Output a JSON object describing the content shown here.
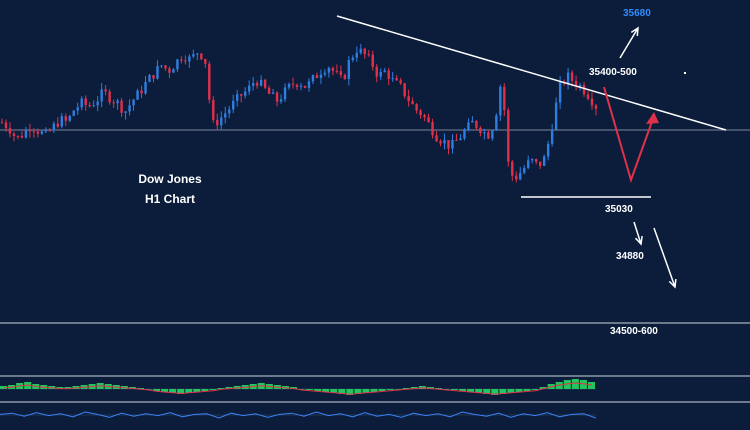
{
  "colors": {
    "background": "#0b1d3a",
    "bull_candle": "#2f7de1",
    "bear_candle": "#e0314b",
    "trendline": "#ffffff",
    "projection_red": "#e0314b",
    "projection_white": "#ffffff",
    "target_blue": "#2f8cff",
    "macd_bar": "#22c55e",
    "macd_signal": "#e0314b",
    "oscillator": "#3b82f6"
  },
  "chart_data": {
    "type": "candlestick",
    "title": "Dow Jones",
    "subtitle": "H1 Chart",
    "levels": {
      "target_up": "35680",
      "resistance": "35400-500",
      "support": "35030",
      "target_down_1": "34880",
      "target_down_2": "34500-600"
    },
    "annotations": [
      "descending trendline",
      "red V projection",
      "white arrow up",
      "white arrows down"
    ],
    "price_path": [
      35250,
      35230,
      35190,
      35210,
      35240,
      35220,
      35200,
      35230,
      35260,
      35250,
      35300,
      35320,
      35310,
      35330,
      35360,
      35340,
      35320,
      35290,
      35330,
      35360,
      35400,
      35430,
      35460,
      35440,
      35470,
      35500,
      35480,
      35510,
      35490,
      35240,
      35260,
      35290,
      35320,
      35350,
      35370,
      35410,
      35380,
      35350,
      35330,
      35360,
      35390,
      35400,
      35380,
      35410,
      35440,
      35460,
      35430,
      35400,
      35480,
      35520,
      35500,
      35470,
      35420,
      35440,
      35400,
      35380,
      35340,
      35300,
      35280,
      35240,
      35200,
      35180,
      35160,
      35190,
      35220,
      35250,
      35230,
      35200,
      35250,
      35420,
      35060,
      35050,
      35080,
      35110,
      35090,
      35120,
      35250,
      35380,
      35420,
      35400,
      35380,
      35350,
      35310
    ],
    "macd_histogram": [
      3,
      4,
      6,
      7,
      5,
      4,
      3,
      2,
      2,
      3,
      4,
      5,
      6,
      5,
      4,
      3,
      2,
      1,
      0,
      -2,
      -3,
      -4,
      -5,
      -4,
      -3,
      -2,
      -1,
      1,
      2,
      3,
      4,
      5,
      6,
      5,
      4,
      3,
      2,
      0,
      -1,
      -2,
      -3,
      -4,
      -5,
      -6,
      -5,
      -4,
      -3,
      -2,
      -1,
      0,
      1,
      2,
      3,
      2,
      1,
      0,
      -1,
      -2,
      -3,
      -4,
      -5,
      -6,
      -5,
      -4,
      -3,
      -2,
      -1,
      2,
      5,
      7,
      9,
      10,
      9,
      7
    ],
    "oscillator": [
      0.1,
      0.3,
      -0.2,
      0.4,
      -0.1,
      0.2,
      -0.3,
      0.5,
      0.1,
      -0.4,
      0.3,
      -0.2,
      0.2,
      -0.1,
      0.4,
      -0.3,
      0.1,
      0.2,
      -0.5,
      0.3,
      -0.1,
      0.2,
      -0.4,
      0.1,
      0.3,
      -0.2,
      0.5,
      -0.1,
      0.2,
      -0.3,
      0.4,
      -0.2,
      0.1,
      -0.4,
      0.3,
      -0.1,
      0.2,
      -0.3,
      0.5,
      0.1,
      -0.2,
      0.3,
      -0.4,
      0.2,
      -0.1,
      0.4,
      -0.3,
      0.1,
      0.2,
      -0.5
    ]
  }
}
